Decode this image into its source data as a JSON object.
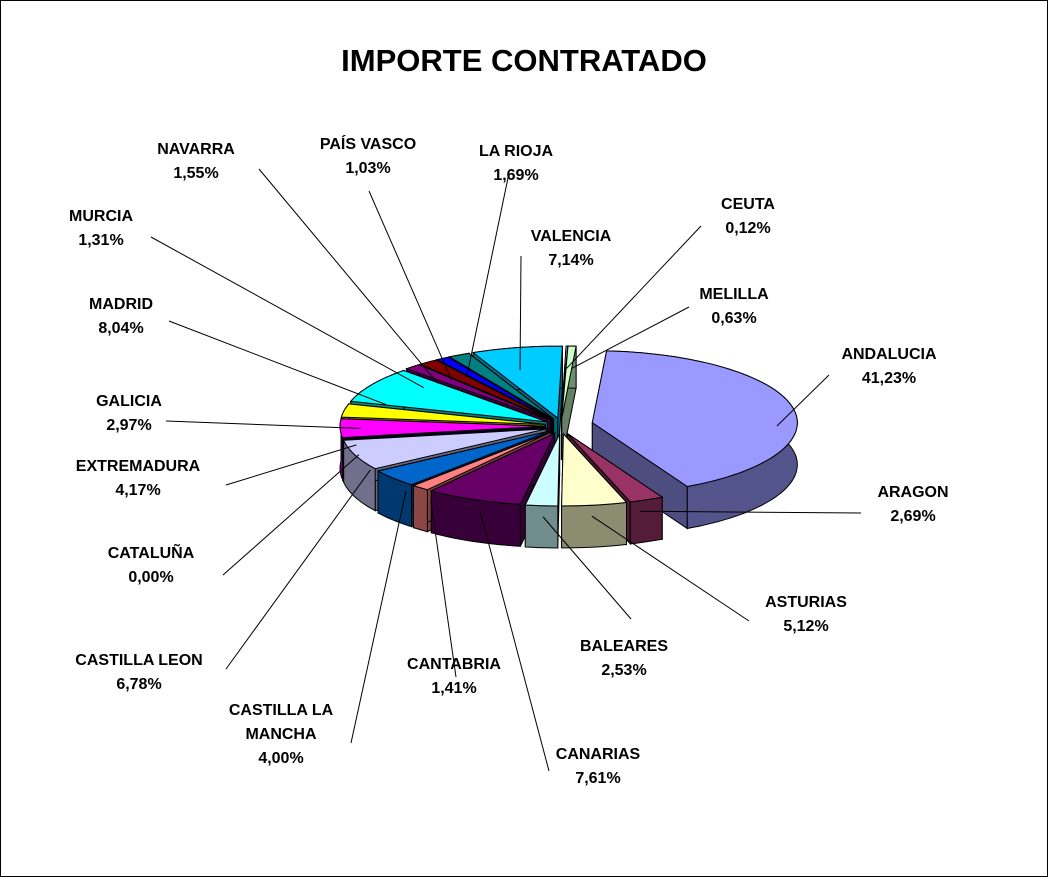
{
  "chart_data": {
    "type": "pie3d",
    "title": "IMPORTE CONTRATADO",
    "categories": [
      "ANDALUCIA",
      "ARAGON",
      "ASTURIAS",
      "BALEARES",
      "CANARIAS",
      "CANTABRIA",
      "CASTILLA LA MANCHA",
      "CASTILLA LEON",
      "CATALUÑA",
      "EXTREMADURA",
      "GALICIA",
      "MADRID",
      "MURCIA",
      "NAVARRA",
      "PAÍS VASCO",
      "LA RIOJA",
      "VALENCIA",
      "CEUTA",
      "MELILLA"
    ],
    "values": [
      41.23,
      2.69,
      5.12,
      2.53,
      7.61,
      1.41,
      4.0,
      6.78,
      0.0,
      4.17,
      2.97,
      8.04,
      1.31,
      1.55,
      1.03,
      1.69,
      7.14,
      0.12,
      0.63
    ],
    "value_labels": [
      "41,23%",
      "2,69%",
      "5,12%",
      "2,53%",
      "7,61%",
      "1,41%",
      "4,00%",
      "6,78%",
      "0,00%",
      "4,17%",
      "2,97%",
      "8,04%",
      "1,31%",
      "1,55%",
      "1,03%",
      "1,69%",
      "7,14%",
      "0,12%",
      "0,63%"
    ],
    "colors": [
      "#9999ff",
      "#993366",
      "#ffffcc",
      "#ccffff",
      "#660066",
      "#ff8080",
      "#0066cc",
      "#ccccff",
      "#000080",
      "#ff00ff",
      "#ffff00",
      "#00ffff",
      "#800080",
      "#800000",
      "#0000ff",
      "#008080",
      "#00ccff",
      "#ccffff",
      "#ccffcc"
    ]
  }
}
